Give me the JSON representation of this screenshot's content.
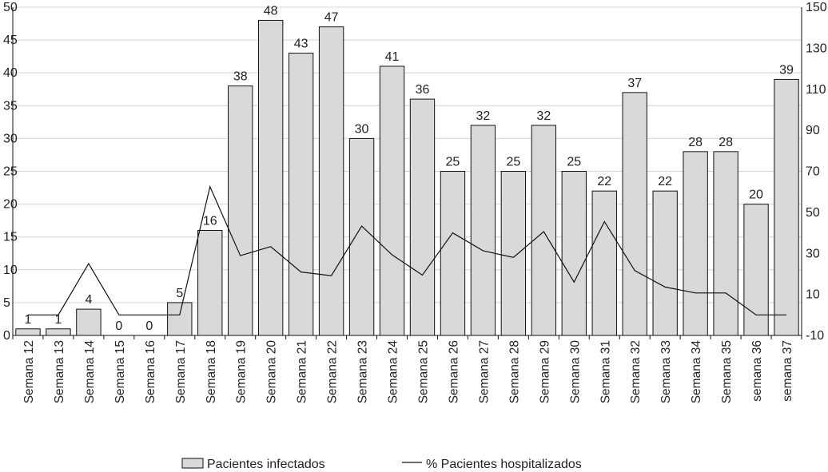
{
  "chart_data": {
    "type": "bar",
    "categories": [
      "Semana 12",
      "Semana 13",
      "Semana 14",
      "Semana 15",
      "Semana 16",
      "Semana 17",
      "Semana 18",
      "Semana 19",
      "Semana 20",
      "Semana 21",
      "Semana 22",
      "Semana 23",
      "Semana 24",
      "Semana 25",
      "Semana 26",
      "Semana 27",
      "Semana 28",
      "Semana 29",
      "Semana 30",
      "Semana 31",
      "Semana 32",
      "Semana 33",
      "Semana 34",
      "Semana 35",
      "semana 36",
      "semana 37"
    ],
    "series": [
      {
        "name": "Pacientes infectados",
        "type": "bar",
        "axis": "left",
        "values": [
          1,
          1,
          4,
          0,
          0,
          5,
          16,
          38,
          48,
          43,
          47,
          30,
          41,
          36,
          25,
          32,
          25,
          32,
          25,
          22,
          37,
          22,
          28,
          28,
          20,
          39
        ],
        "labels": [
          "1",
          "1",
          "4",
          "0",
          "0",
          "5",
          "16",
          "38",
          "48",
          "43",
          "47",
          "30",
          "41",
          "36",
          "25",
          "32",
          "25",
          "32",
          "25",
          "22",
          "37",
          "22",
          "28",
          "28",
          "20",
          "39"
        ]
      },
      {
        "name": "% Pacientes hospitalizados",
        "type": "line",
        "axis": "right",
        "values": [
          0,
          0,
          25,
          0,
          0,
          0,
          62.5,
          28.9,
          33.3,
          20.9,
          19.1,
          43.3,
          29.3,
          19.4,
          40,
          31.3,
          28,
          40.6,
          16,
          45.5,
          21.6,
          13.6,
          10.7,
          10.7,
          0,
          0
        ]
      }
    ],
    "y_left": {
      "min": 0,
      "max": 50,
      "ticks": [
        "0",
        "5",
        "10",
        "15",
        "20",
        "25",
        "30",
        "35",
        "40",
        "45",
        "50"
      ]
    },
    "y_right": {
      "min": -10,
      "max": 150,
      "ticks": [
        "-10",
        "10",
        "30",
        "50",
        "70",
        "90",
        "110",
        "130",
        "150"
      ]
    },
    "grid": true,
    "legend_position": "bottom",
    "colors": {
      "bar_fill": "#d9d9d9",
      "bar_stroke": "#111111",
      "line": "#111111",
      "grid": "#d4d4d4"
    }
  }
}
